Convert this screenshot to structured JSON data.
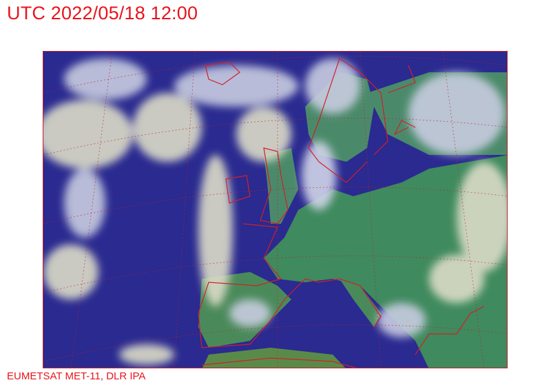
{
  "header": {
    "title": "UTC 2022/05/18 12:00"
  },
  "map": {
    "image_type": "satellite composite (Europe / North Atlantic)",
    "colors": {
      "ocean": "#2a2a90",
      "land": "#3f8a5e",
      "cloud": "#dcdcc8",
      "coastline": "#d0202a",
      "text": "#e8141c"
    }
  },
  "footer": {
    "credit": "EUMETSAT MET-11, DLR IPA"
  }
}
